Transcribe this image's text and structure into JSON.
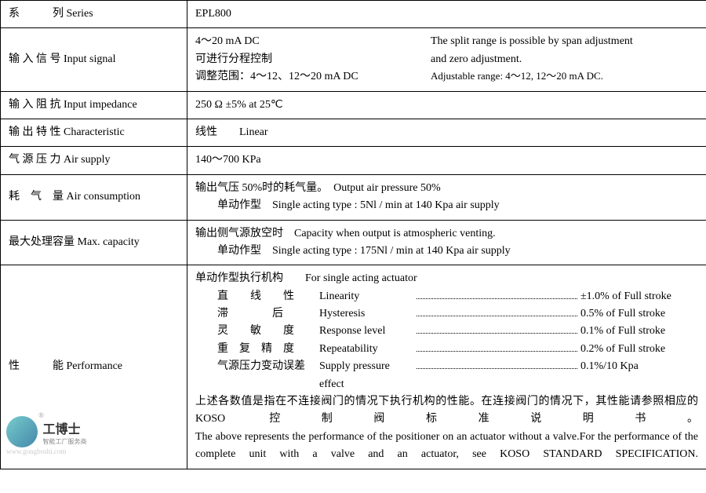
{
  "rows": {
    "series": {
      "label_cn": "系　　　列",
      "label_en": "Series",
      "value": "EPL800"
    },
    "input_signal": {
      "label_cn": "输 入 信 号",
      "label_en": "Input signal",
      "l1_left": "4～20 mA DC",
      "l1_right": "The split range is possible by span adjustment",
      "l2_left": "可进行分程控制",
      "l2_right": "and zero adjustment.",
      "l3_left": "调整范围：4～12、12～20 mA  DC",
      "l3_right": "Adjustable range:  4～12, 12～20 mA  DC."
    },
    "input_impedance": {
      "label_cn": "输 入 阻 抗",
      "label_en": "Input impedance",
      "value": "250 Ω ±5% at 25℃"
    },
    "characteristic": {
      "label_cn": "输 出 特 性",
      "label_en": "Characteristic",
      "value_cn": "线性",
      "value_en": "Linear"
    },
    "air_supply": {
      "label_cn": "气 源 压 力",
      "label_en": "Air supply",
      "value": "140～700 KPa"
    },
    "air_consumption": {
      "label_cn": "耗　气　量",
      "label_en": "Air consumption",
      "l1": "输出气压 50%时的耗气量。　Output air pressure 50%",
      "l2": "单动作型　Single acting type : 5Nl / min at 140 Kpa air supply"
    },
    "max_capacity": {
      "label_cn": "最大处理容量",
      "label_en": "Max. capacity",
      "l1": "输出侧气源放空时　Capacity when output is atmospheric venting.",
      "l2": "单动作型　Single acting type : 175Nl / min at 140 Kpa air supply"
    },
    "performance": {
      "label_cn": "性　　　能",
      "label_en": "Performance",
      "header": "单动作型执行机构　　For single acting actuator",
      "specs": [
        {
          "cn": "直　　线　　性",
          "en": "Linearity",
          "val": "±1.0% of Full stroke"
        },
        {
          "cn": "滞　　　　后",
          "en": "Hysteresis",
          "val": "0.5% of Full stroke"
        },
        {
          "cn": "灵　　敏　　度",
          "en": "Response level",
          "val": "0.1% of Full stroke"
        },
        {
          "cn": "重　复　精　度",
          "en": "Repeatability",
          "val": "0.2% of Full stroke"
        },
        {
          "cn": "气源压力变动误差",
          "en": "Supply pressure effect",
          "val": "0.1%/10 Kpa"
        }
      ],
      "note_cn": "上述各数值是指在不连接阀门的情况下执行机构的性能。在连接阀门的情况下，其性能请参照相应的 KOSO 控制阀标准说明书。",
      "note_en": "The above represents the performance of the positioner on an actuator without a valve.For the performance of the complete unit with a valve and an actuator, see KOSO STANDARD SPECIFICATION."
    }
  },
  "logo": {
    "main": "工博士",
    "sub": "智能工厂服务商",
    "site": "www.gongboshi.com"
  }
}
